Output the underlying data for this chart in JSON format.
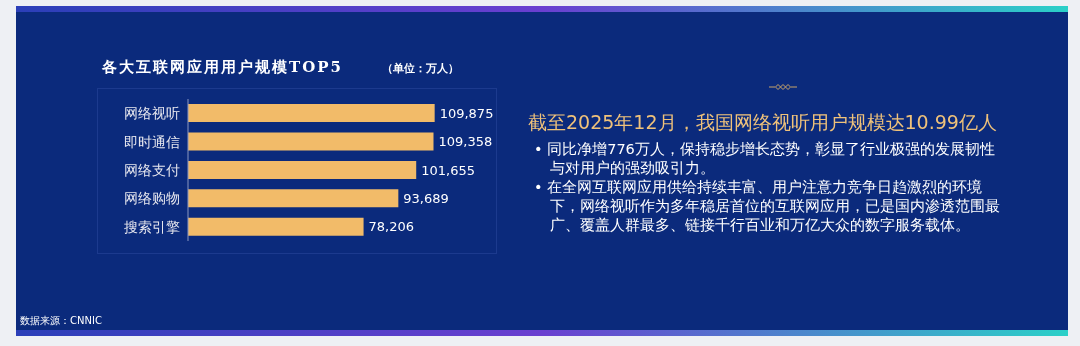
{
  "chart_data": [
    {
      "type": "bar",
      "orientation": "horizontal",
      "title": "各大互联网应用用户规模TOP5",
      "subtitle": "（单位：万人）",
      "categories": [
        "网络视听",
        "即时通信",
        "网络支付",
        "网络购物",
        "搜索引擎"
      ],
      "values": [
        109875,
        109358,
        101655,
        93689,
        78206
      ],
      "value_labels": [
        "109,875",
        "109,358",
        "101,655",
        "93,689",
        "78,206"
      ],
      "color": "#f2bb69",
      "annotations": [
        "数据来源：CNNIC"
      ]
    },
    {
      "type": "other",
      "title": "截至2025年12月，我国网络视听用户规模达10.99亿人",
      "annotations": [
        "• 同比净增776万人，保持稳步增长态势，彰显了行业极强的发展韧性与对用户的强劲吸引力。",
        "• 在全网互联网应用供给持续丰富、用户注意力竞争日趋激烈的环境下，网络视听作为多年稳居首位的互联网应用，已是国内渗透范围最广、覆盖人群最多、链接千行百业和万亿大众的数字服务载体。"
      ]
    }
  ]
}
